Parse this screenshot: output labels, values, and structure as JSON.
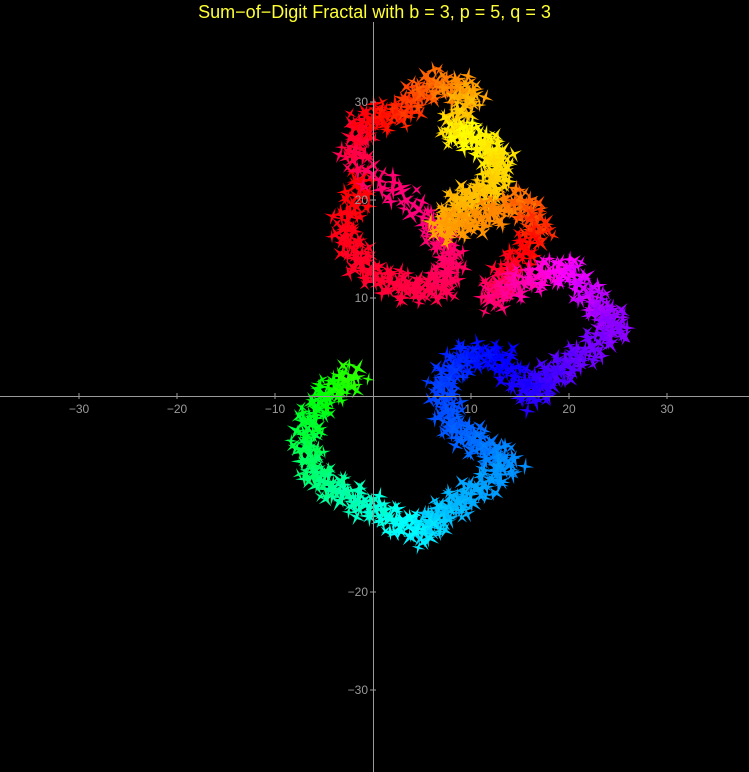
{
  "chart_data": {
    "type": "scatter",
    "title": "Sum−of−Digit Fractal with b = 3, p = 5, q = 3",
    "xlabel": "",
    "ylabel": "",
    "xlim": [
      -38,
      38
    ],
    "ylim": [
      -38,
      38
    ],
    "grid": false,
    "legend": "none",
    "x_ticks": [
      -30,
      -20,
      -10,
      10,
      20,
      30
    ],
    "y_ticks": [
      30,
      20,
      10,
      -20,
      -30
    ],
    "x_tick_labels": [
      "−30",
      "−20",
      "−10",
      "10",
      "20",
      "30"
    ],
    "y_tick_labels": [
      "30",
      "20",
      "10",
      "−20",
      "−30"
    ],
    "params": {
      "b": 3,
      "p": 5,
      "q": 3
    },
    "colors": {
      "background": "#000000",
      "axes": "#9a9a9a",
      "title": "#FFFF33"
    }
  }
}
